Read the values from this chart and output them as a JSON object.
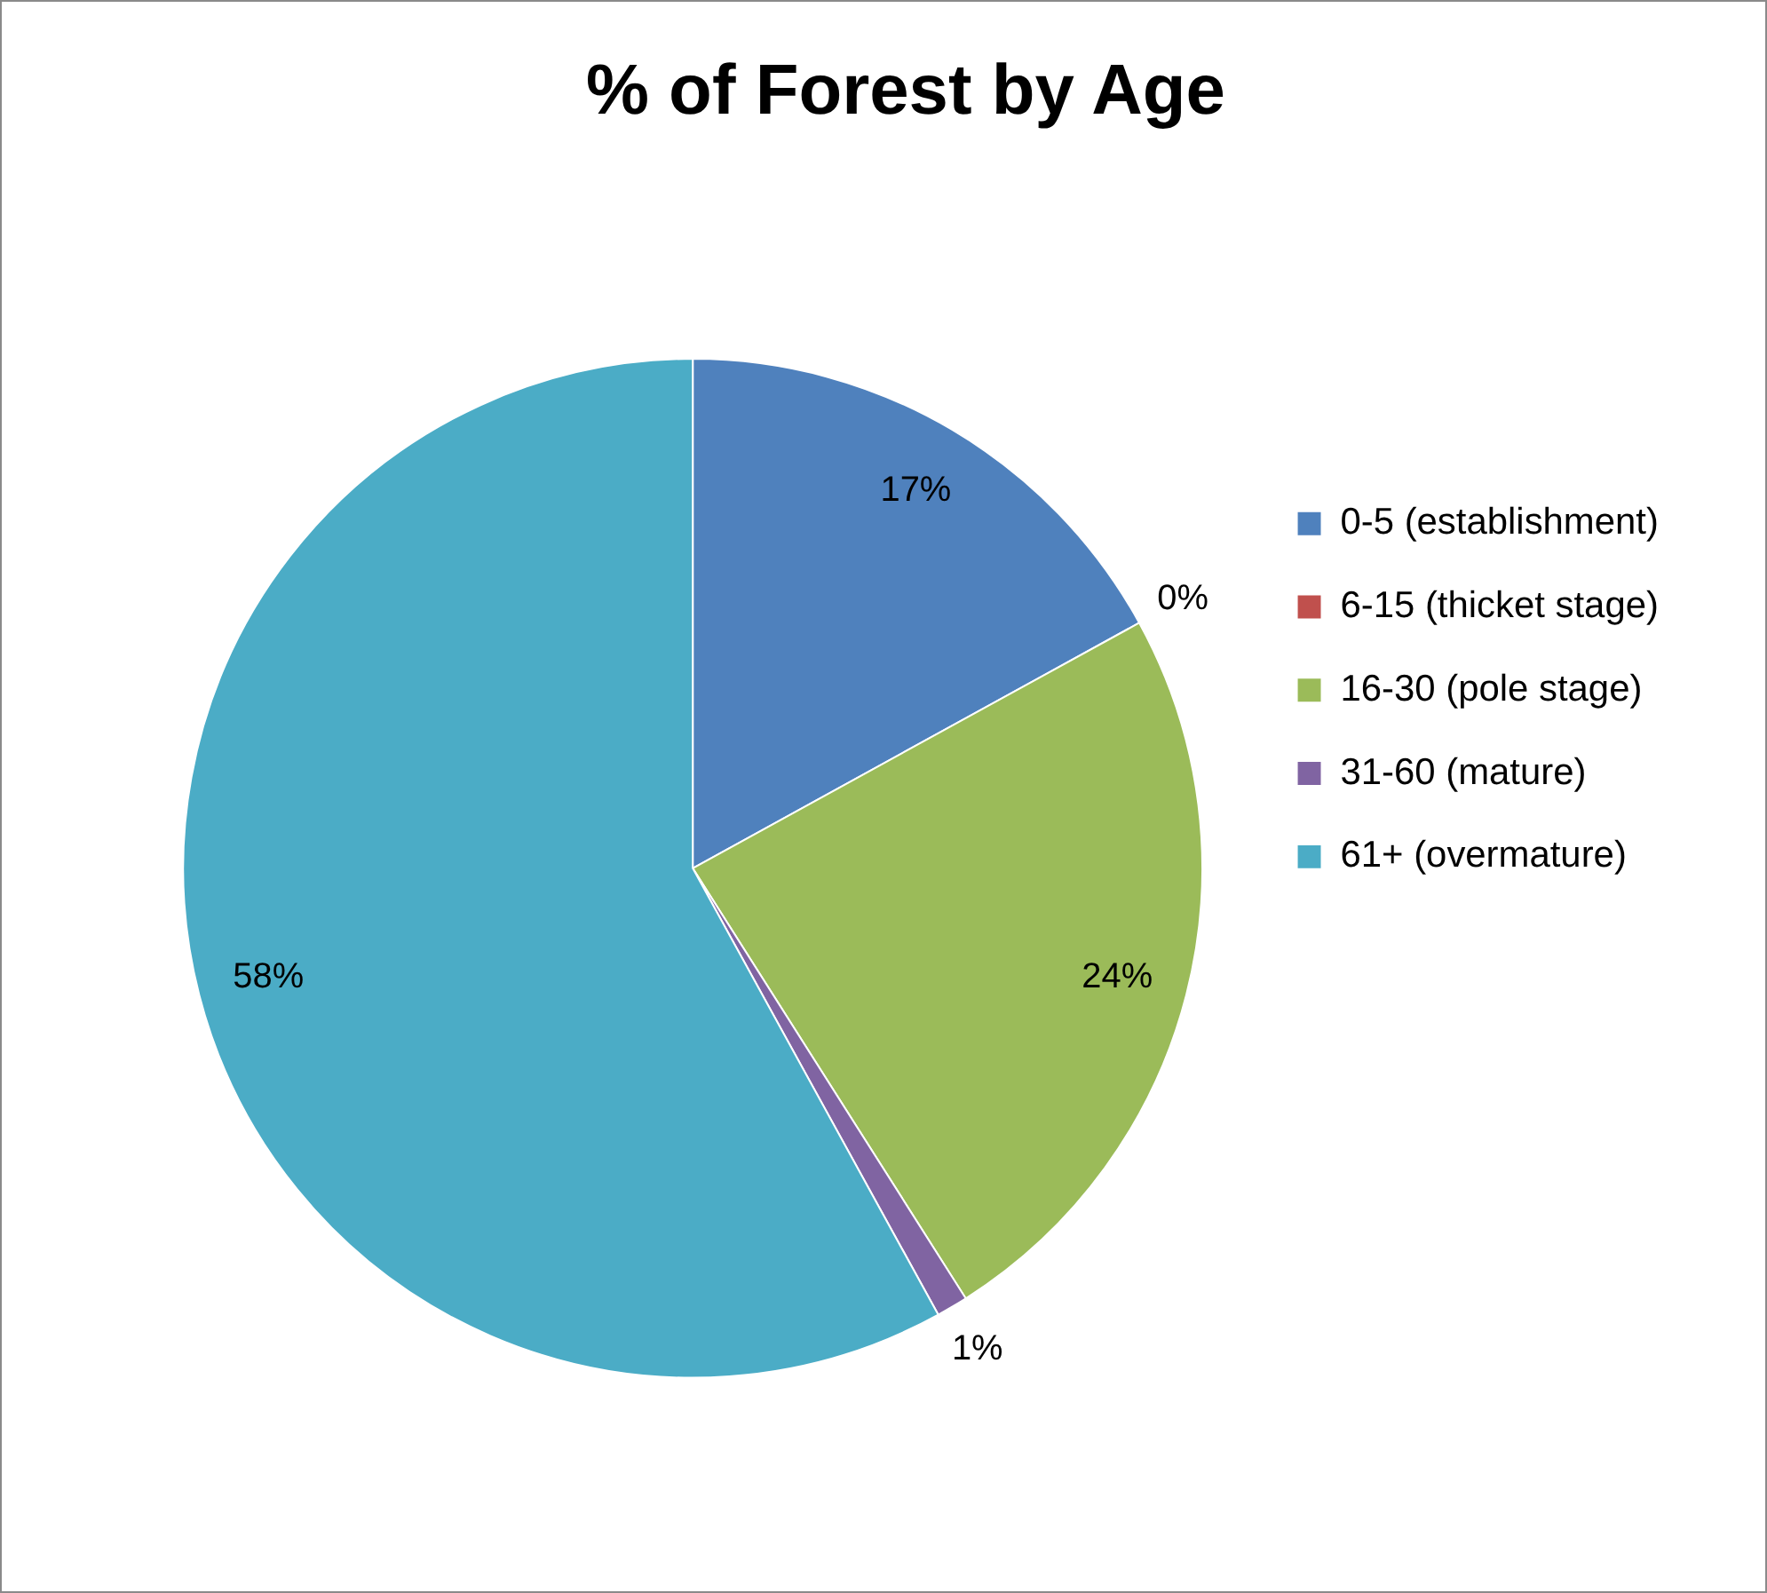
{
  "chart_data": {
    "type": "pie",
    "title": "% of Forest by Age",
    "categories": [
      "0-5 (establishment)",
      "6-15 (thicket stage)",
      "16-30 (pole stage)",
      "31-60 (mature)",
      "61+ (overmature)"
    ],
    "values": [
      17,
      0,
      24,
      1,
      58
    ],
    "colors": [
      "#4f81bd",
      "#c0504d",
      "#9bbb59",
      "#8064a2",
      "#4bacc6"
    ],
    "value_labels": [
      "17%",
      "0%",
      "24%",
      "1%",
      "58%"
    ],
    "legend": "right"
  }
}
